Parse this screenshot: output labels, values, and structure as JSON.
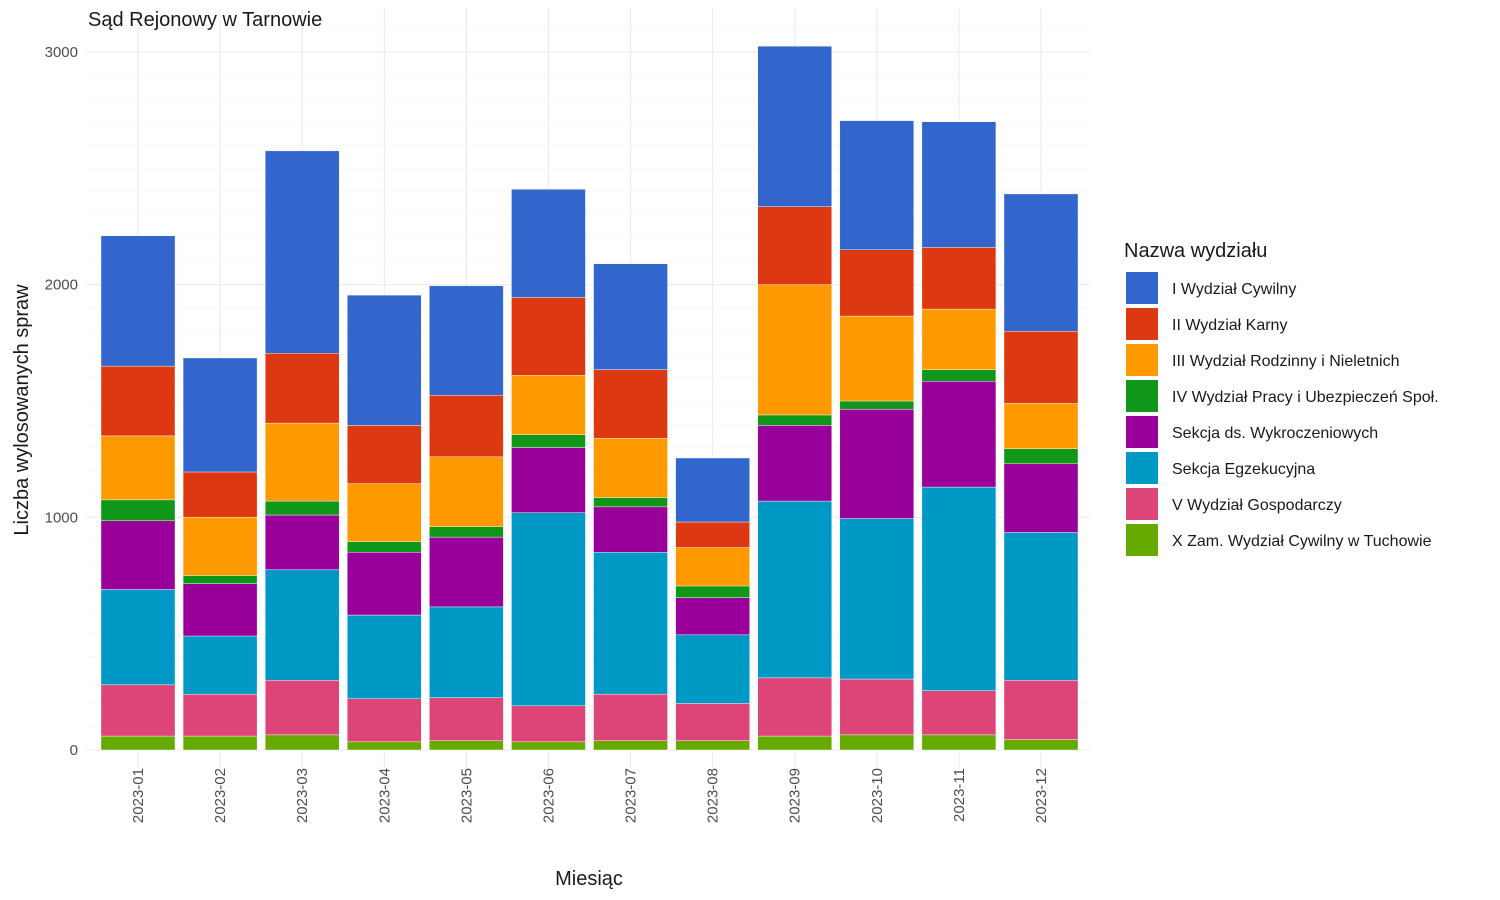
{
  "chart_data": {
    "type": "bar",
    "stacked": true,
    "title": "Sąd Rejonowy w Tarnowie",
    "xlabel": "Miesiąc",
    "ylabel": "Liczba wylosowanych spraw",
    "ylim": [
      0,
      3100
    ],
    "yticks": [
      0,
      1000,
      2000,
      3000
    ],
    "grid": true,
    "legend_position": "right",
    "legend_title": "Nazwa wydziału",
    "categories": [
      "2023-01",
      "2023-02",
      "2023-03",
      "2023-04",
      "2023-05",
      "2023-06",
      "2023-07",
      "2023-08",
      "2023-09",
      "2023-10",
      "2023-11",
      "2023-12"
    ],
    "series": [
      {
        "name": "X Zam. Wydział Cywilny w Tuchowie",
        "color": "#66aa00",
        "values": [
          60,
          60,
          65,
          35,
          40,
          35,
          40,
          40,
          60,
          65,
          65,
          45
        ]
      },
      {
        "name": "V Wydział Gospodarczy",
        "color": "#dd4477",
        "values": [
          220,
          180,
          235,
          185,
          185,
          155,
          200,
          160,
          250,
          240,
          190,
          255
        ]
      },
      {
        "name": "Sekcja Egzekucyjna",
        "color": "#0099c6",
        "values": [
          410,
          250,
          475,
          360,
          390,
          830,
          610,
          295,
          760,
          690,
          875,
          635
        ]
      },
      {
        "name": "Sekcja ds. Wykroczeniowych",
        "color": "#990099",
        "values": [
          295,
          225,
          235,
          270,
          300,
          280,
          195,
          160,
          325,
          470,
          455,
          295
        ]
      },
      {
        "name": "IV Wydział Pracy i Ubezpieczeń Społ.",
        "color": "#109618",
        "values": [
          90,
          35,
          60,
          45,
          45,
          55,
          40,
          50,
          45,
          35,
          50,
          65
        ]
      },
      {
        "name": "III Wydział Rodzinny i Nieletnich",
        "color": "#ff9900",
        "values": [
          275,
          250,
          335,
          250,
          300,
          255,
          255,
          165,
          560,
          365,
          260,
          195
        ]
      },
      {
        "name": "II Wydział Karny",
        "color": "#dc3912",
        "values": [
          300,
          195,
          300,
          250,
          265,
          335,
          295,
          110,
          335,
          285,
          265,
          310
        ]
      },
      {
        "name": "I Wydział Cywilny",
        "color": "#3366cc",
        "values": [
          560,
          490,
          870,
          560,
          470,
          465,
          455,
          275,
          690,
          555,
          540,
          590
        ]
      }
    ]
  }
}
